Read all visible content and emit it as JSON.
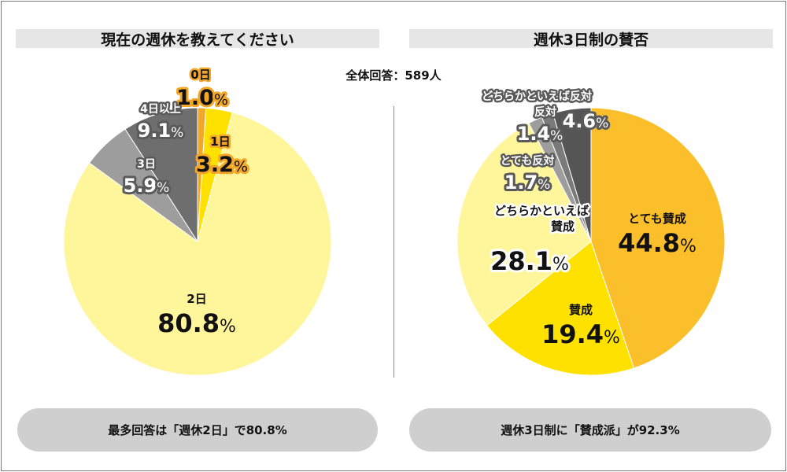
{
  "total_respondents": "全体回答：589人",
  "chart_data": [
    {
      "type": "pie",
      "title": "現在の週休を教えてください",
      "summary": "最多回答は「週休2日」で80.8%",
      "slices": [
        {
          "label": "0日",
          "value": 1.0,
          "value_text": "1.0",
          "color": "#F2A62A"
        },
        {
          "label": "1日",
          "value": 3.2,
          "value_text": "3.2",
          "color": "#FFE100"
        },
        {
          "label": "2日",
          "value": 80.8,
          "value_text": "80.8",
          "color": "#FFF59B"
        },
        {
          "label": "3日",
          "value": 5.9,
          "value_text": "5.9",
          "color": "#9D9D9D"
        },
        {
          "label": "4日以上",
          "value": 9.1,
          "value_text": "9.1",
          "color": "#6E6E6E"
        }
      ]
    },
    {
      "type": "pie",
      "title": "週休3日制の賛否",
      "summary": "週休3日制に「賛成派」が92.3%",
      "slices": [
        {
          "label": "とても賛成",
          "value": 44.8,
          "value_text": "44.8",
          "color": "#FBBF2B"
        },
        {
          "label": "賛成",
          "value": 19.4,
          "value_text": "19.4",
          "color": "#FFE100"
        },
        {
          "label": "どちらかといえば賛成",
          "value": 28.1,
          "value_text": "28.1",
          "color": "#FFF59B"
        },
        {
          "label": "とても反対",
          "value": 1.7,
          "value_text": "1.7",
          "color": "#9D9D9D"
        },
        {
          "label": "反対",
          "value": 1.4,
          "value_text": "1.4",
          "color": "#7A7A7A"
        },
        {
          "label": "どちらかといえば反対",
          "value": 4.6,
          "value_text": "4.6",
          "color": "#555555"
        }
      ]
    }
  ]
}
